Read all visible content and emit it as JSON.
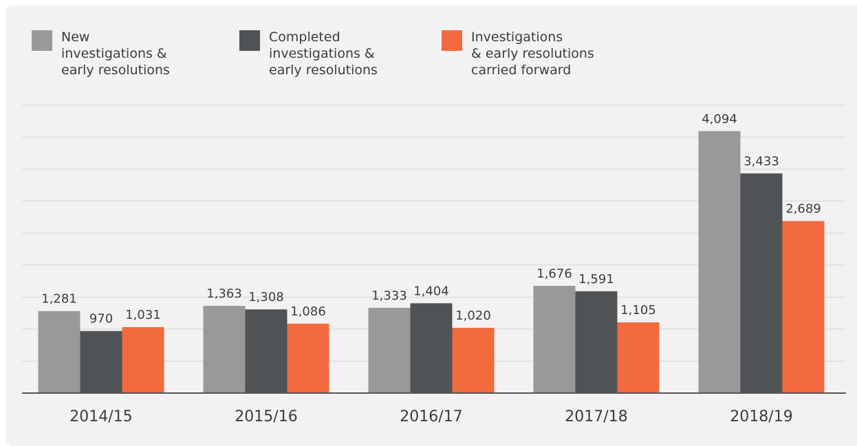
{
  "chart_data": {
    "type": "bar",
    "categories": [
      "2014/15",
      "2015/16",
      "2016/17",
      "2017/18",
      "2018/19"
    ],
    "series": [
      {
        "name": "New\ninvestigations &\nearly resolutions",
        "color": "#9a9898",
        "values": [
          1281,
          1363,
          1333,
          1676,
          4094
        ],
        "value_labels": [
          "1,281",
          "1,363",
          "1,333",
          "1,676",
          "4,094"
        ]
      },
      {
        "name": "Completed\ninvestigations &\nearly resolutions",
        "color": "#505356",
        "values": [
          970,
          1308,
          1404,
          1591,
          3433
        ],
        "value_labels": [
          "970",
          "1,308",
          "1,404",
          "1,591",
          "3,433"
        ]
      },
      {
        "name": "Investigations\n& early resolutions\ncarried forward",
        "color": "#f26a3d",
        "values": [
          1031,
          1086,
          1020,
          1105,
          2689
        ],
        "value_labels": [
          "1,031",
          "1,086",
          "1,020",
          "1,105",
          "2,689"
        ]
      }
    ],
    "ylim": [
      0,
      4500
    ],
    "yticks": [
      0,
      500,
      1000,
      1500,
      2000,
      2500,
      3000,
      3500,
      4000,
      4500
    ],
    "show_ytick_labels": false,
    "grid": true
  }
}
